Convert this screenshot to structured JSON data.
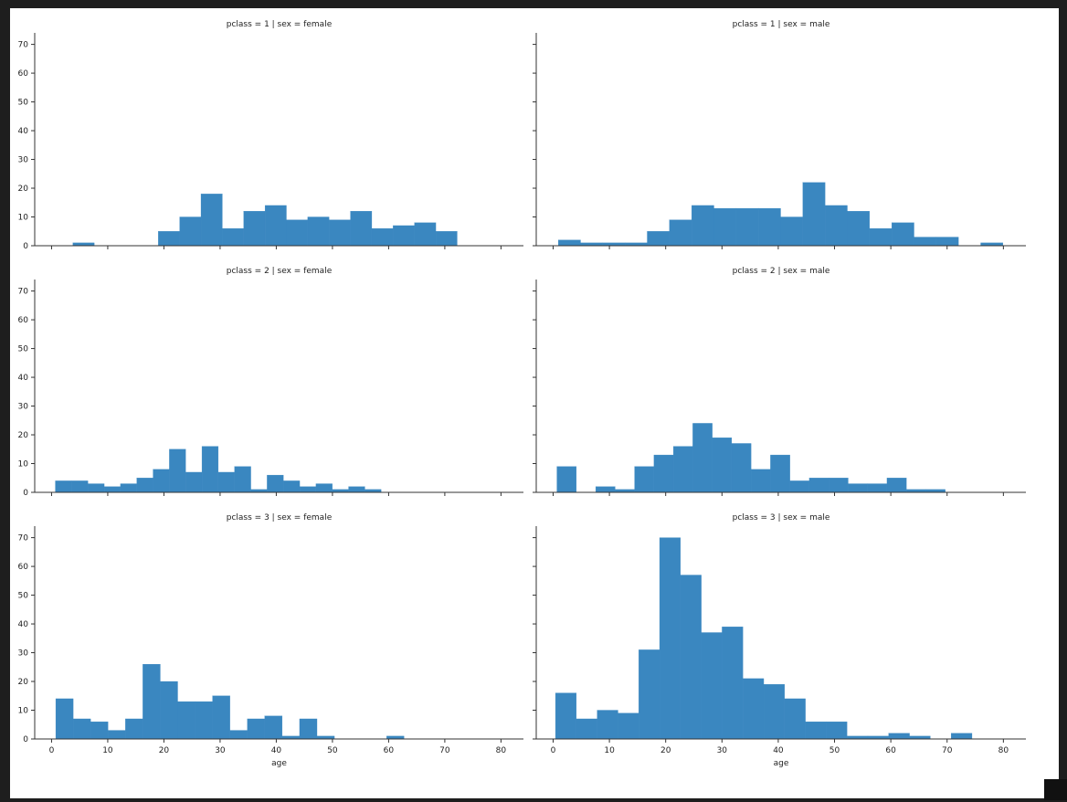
{
  "chart_data": {
    "type": "histogram-facet-grid",
    "row_variable": "pclass",
    "col_variable": "sex",
    "xlabel": "age",
    "xlim": [
      -3,
      84
    ],
    "ylim": [
      0,
      74
    ],
    "xticks": [
      0,
      10,
      20,
      30,
      40,
      50,
      60,
      70,
      80
    ],
    "yticks": [
      0,
      10,
      20,
      30,
      40,
      50,
      60,
      70
    ],
    "bar_color": "#3a87c0",
    "panels": [
      {
        "title": "pclass = 1 | sex = female",
        "bin_start": 0,
        "bin_width": 3.8,
        "values": [
          0,
          1,
          0,
          0,
          0,
          5,
          10,
          18,
          6,
          12,
          14,
          9,
          10,
          9,
          12,
          6,
          7,
          8,
          5,
          0,
          0,
          0,
          0,
          0,
          0,
          0,
          0,
          0,
          0,
          0,
          0,
          0,
          0,
          0,
          0,
          0,
          0,
          0,
          0
        ]
      },
      {
        "title": "pclass = 1 | sex = male",
        "bin_start": 0.92,
        "bin_width": 3.95,
        "values": [
          2,
          1,
          1,
          1,
          5,
          9,
          14,
          13,
          13,
          13,
          10,
          22,
          14,
          12,
          6,
          8,
          3,
          3,
          0,
          1
        ]
      },
      {
        "title": "pclass = 2 | sex = female",
        "bin_start": 0.67,
        "bin_width": 2.9,
        "values": [
          4,
          4,
          3,
          2,
          3,
          5,
          8,
          15,
          7,
          16,
          7,
          9,
          1,
          6,
          4,
          2,
          3,
          1,
          2,
          1
        ]
      },
      {
        "title": "pclass = 2 | sex = male",
        "bin_start": 0.67,
        "bin_width": 3.45,
        "values": [
          9,
          0,
          2,
          1,
          9,
          13,
          16,
          24,
          19,
          17,
          8,
          13,
          4,
          5,
          5,
          3,
          3,
          5,
          1,
          1
        ]
      },
      {
        "title": "pclass = 3 | sex = female",
        "bin_start": 0.75,
        "bin_width": 3.1,
        "values": [
          14,
          7,
          6,
          3,
          7,
          26,
          20,
          13,
          13,
          15,
          3,
          7,
          8,
          1,
          7,
          1,
          0,
          0,
          0,
          1
        ]
      },
      {
        "title": "pclass = 3 | sex = male",
        "bin_start": 0.42,
        "bin_width": 3.7,
        "values": [
          16,
          7,
          10,
          9,
          31,
          70,
          57,
          37,
          39,
          21,
          19,
          14,
          6,
          6,
          1,
          1,
          2,
          1,
          0,
          2
        ]
      }
    ]
  }
}
